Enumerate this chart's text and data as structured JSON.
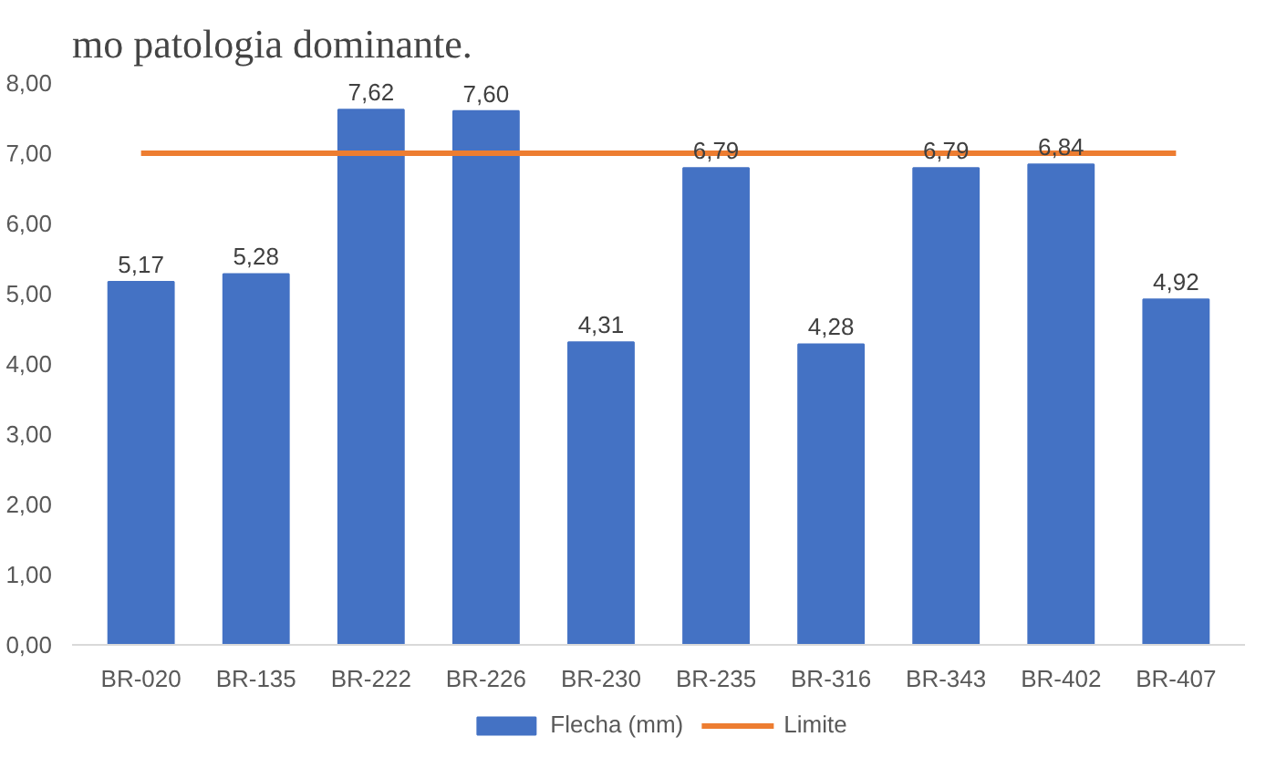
{
  "chart_data": {
    "type": "bar",
    "categories": [
      "BR-020",
      "BR-135",
      "BR-222",
      "BR-226",
      "BR-230",
      "BR-235",
      "BR-316",
      "BR-343",
      "BR-402",
      "BR-407"
    ],
    "series": [
      {
        "name": "Flecha (mm)",
        "color": "#4472c4",
        "values": [
          5.17,
          5.28,
          7.62,
          7.6,
          4.31,
          6.79,
          4.28,
          6.79,
          6.84,
          4.92
        ],
        "value_labels": [
          "5,17",
          "5,28",
          "7,62",
          "7,60",
          "4,31",
          "6,79",
          "4,28",
          "6,79",
          "6,84",
          "4,92"
        ]
      },
      {
        "name": "Limite",
        "type": "line",
        "color": "#ed7d31",
        "values": [
          7,
          7,
          7,
          7,
          7,
          7,
          7,
          7,
          7,
          7
        ]
      }
    ],
    "ylim": [
      0,
      8
    ],
    "yticks": [
      {
        "value": 0,
        "label": "0,00"
      },
      {
        "value": 1,
        "label": "1,00"
      },
      {
        "value": 2,
        "label": "2,00"
      },
      {
        "value": 3,
        "label": "3,00"
      },
      {
        "value": 4,
        "label": "4,00"
      },
      {
        "value": 5,
        "label": "5,00"
      },
      {
        "value": 6,
        "label": "6,00"
      },
      {
        "value": 7,
        "label": "7,00"
      },
      {
        "value": 8,
        "label": "8,00"
      }
    ],
    "grid": false,
    "legend": "bottom",
    "annotations": [
      "mo patologia dominante."
    ]
  }
}
